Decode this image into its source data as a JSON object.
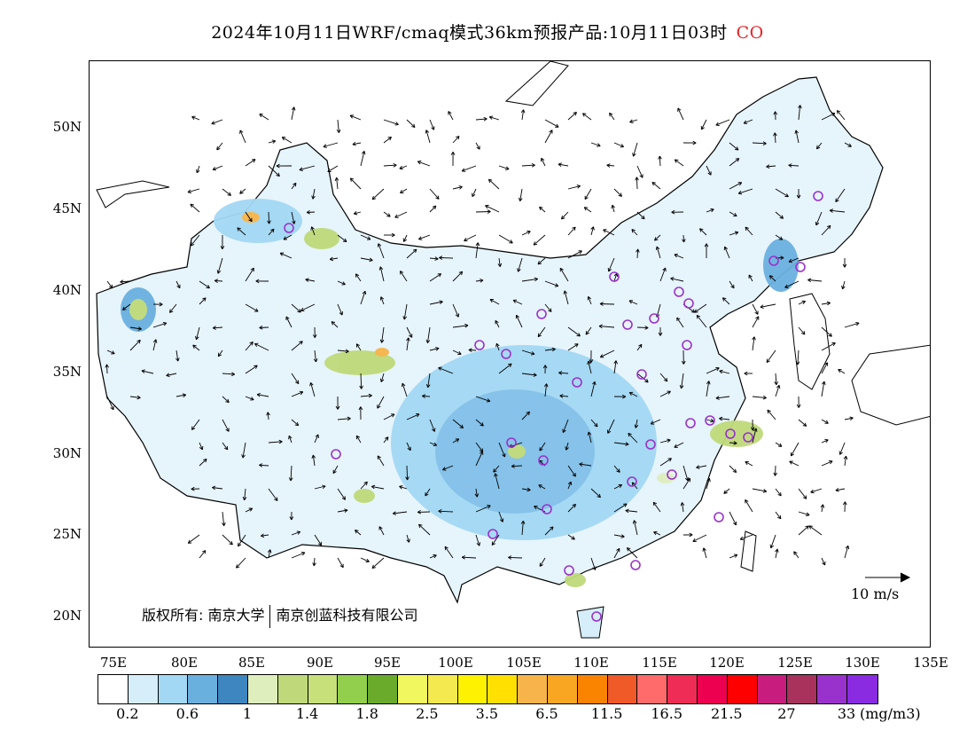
{
  "title": {
    "text": "2024年10月11日WRF/cmaq模式36km预报产品:10月11日03时",
    "pollutant": "CO",
    "pollutant_color": "#e8242a"
  },
  "map": {
    "lat_labels": [
      "50N",
      "45N",
      "40N",
      "35N",
      "30N",
      "25N",
      "20N"
    ],
    "lon_labels": [
      "75E",
      "80E",
      "85E",
      "90E",
      "95E",
      "100E",
      "105E",
      "110E",
      "115E",
      "120E",
      "125E",
      "130E",
      "135E"
    ],
    "wind_reference": "10 m/s",
    "copyright_left": "版权所有: 南京大学",
    "copyright_right": "南京创蓝科技有限公司"
  },
  "legend": {
    "colors": [
      "#ffffff",
      "#d6eefa",
      "#a3d8f4",
      "#6ab0df",
      "#3d86c0",
      "#dfeebd",
      "#bfd97a",
      "#c8e07a",
      "#92cf4c",
      "#6aab2c",
      "#f1f75e",
      "#f4e94e",
      "#fff200",
      "#ffe000",
      "#f7b44a",
      "#f9a623",
      "#fa8300",
      "#f05a28",
      "#ff6b6b",
      "#ee2c55",
      "#ee0050",
      "#ff0000",
      "#c81d7e",
      "#a8325c",
      "#9932cc",
      "#8a2be2"
    ],
    "labels": [
      "0.2",
      "0.6",
      "1",
      "1.4",
      "1.8",
      "2.5",
      "3.5",
      "6.5",
      "11.5",
      "16.5",
      "21.5",
      "27",
      "33"
    ],
    "unit": "(mg/m3)"
  }
}
